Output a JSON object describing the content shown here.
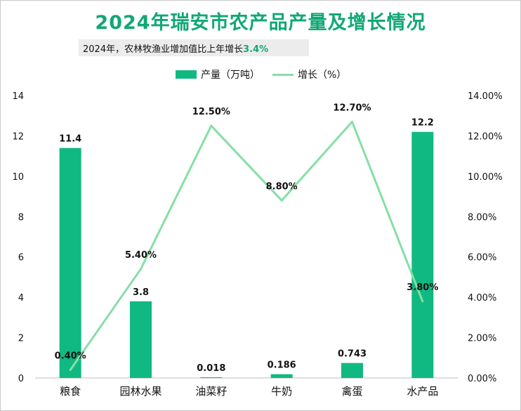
{
  "title": "2024年瑞安市农产品产量及增长情况",
  "subtitle": {
    "text": "2024年，农林牧渔业增加值比上年增长",
    "highlight": "3.4%"
  },
  "colors": {
    "bar": "#10b981",
    "line": "#86dfa6",
    "title": "#10a874"
  },
  "chart_data": {
    "type": "bar",
    "categories": [
      "粮食",
      "园林水果",
      "油菜籽",
      "牛奶",
      "禽蛋",
      "水产品"
    ],
    "series": [
      {
        "name": "产量（万吨）",
        "type": "bar",
        "axis": "left",
        "values": [
          11.4,
          3.8,
          0.018,
          0.186,
          0.743,
          12.2
        ],
        "labels": [
          "11.4",
          "3.8",
          "0.018",
          "0.186",
          "0.743",
          "12.2"
        ]
      },
      {
        "name": "增长（%）",
        "type": "line",
        "axis": "right",
        "values": [
          0.4,
          5.4,
          12.5,
          8.8,
          12.7,
          3.8
        ],
        "labels": [
          "0.40%",
          "5.40%",
          "12.50%",
          "8.80%",
          "12.70%",
          "3.80%"
        ]
      }
    ],
    "y_left": {
      "min": 0,
      "max": 14,
      "ticks": [
        "0",
        "2",
        "4",
        "6",
        "8",
        "10",
        "12",
        "14"
      ]
    },
    "y_right": {
      "min": 0,
      "max": 14,
      "ticks": [
        "0.00%",
        "2.00%",
        "4.00%",
        "6.00%",
        "8.00%",
        "10.00%",
        "12.00%",
        "14.00%"
      ]
    },
    "legend_position": "top",
    "grid": false
  }
}
